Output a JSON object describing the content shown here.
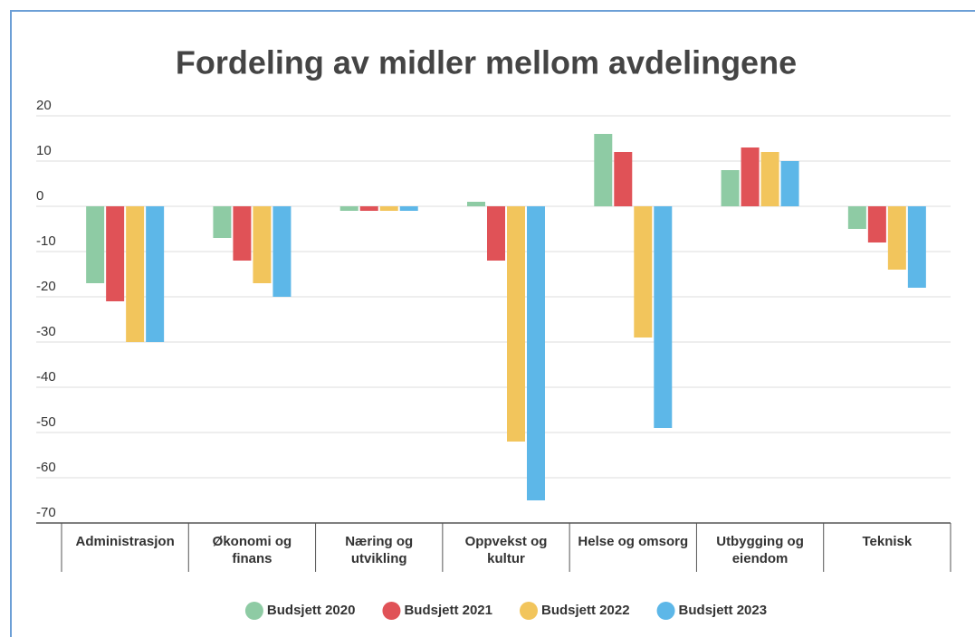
{
  "chart_data": {
    "type": "bar",
    "title": "Fordeling av midler mellom avdelingene",
    "categories": [
      "Administrasjon",
      "Økonomi og finans",
      "Næring og utvikling",
      "Oppvekst og kultur",
      "Helse og omsorg",
      "Utbygging og eiendom",
      "Teknisk"
    ],
    "series": [
      {
        "name": "Budsjett 2020",
        "color": "#8ecba4",
        "values": [
          -17,
          -7,
          -1,
          1,
          16,
          8,
          -5
        ]
      },
      {
        "name": "Budsjett 2021",
        "color": "#e05257",
        "values": [
          -21,
          -12,
          -1,
          -12,
          12,
          13,
          -8
        ]
      },
      {
        "name": "Budsjett 2022",
        "color": "#f2c55c",
        "values": [
          -30,
          -17,
          -1,
          -52,
          -29,
          12,
          -14
        ]
      },
      {
        "name": "Budsjett 2023",
        "color": "#5db7e8",
        "values": [
          -30,
          -20,
          -1,
          -65,
          -49,
          10,
          -18
        ]
      }
    ],
    "ylim": [
      -70,
      20
    ],
    "yticks": [
      20,
      10,
      0,
      -10,
      -20,
      -30,
      -40,
      -50,
      -60,
      -70
    ],
    "grid": true,
    "legend": "bottom"
  }
}
